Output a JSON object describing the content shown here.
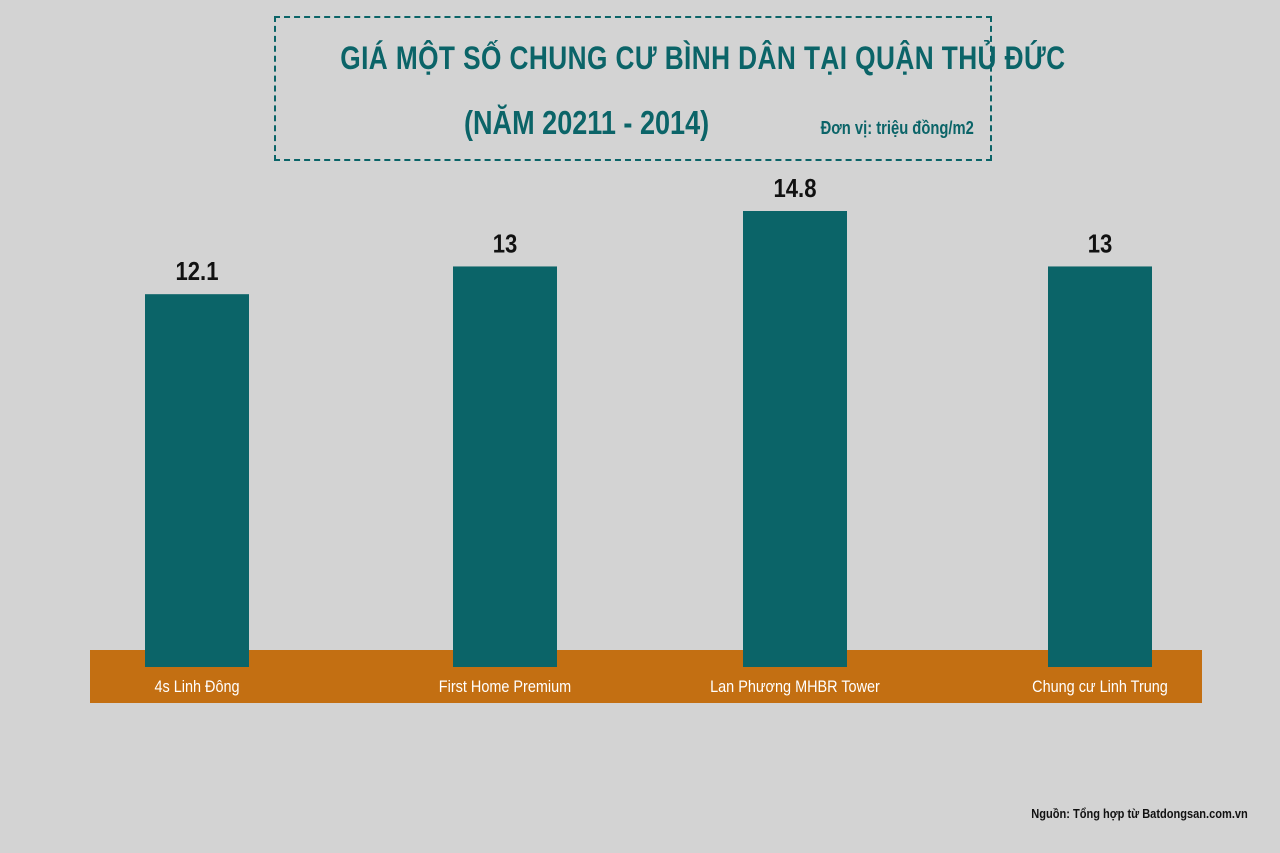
{
  "header": {
    "title": "GIÁ MỘT SỐ CHUNG CƯ BÌNH DÂN TẠI QUẬN THỦ ĐỨC",
    "subtitle": "(NĂM 20211 - 2014)",
    "unit": "Đơn vị: triệu đồng/m2"
  },
  "footer": {
    "source": "Nguồn: Tổng hợp từ Batdongsan.com.vn"
  },
  "colors": {
    "background": "#d3d3d3",
    "bar": "#0b6468",
    "baseline_band": "#c36f12",
    "category_text": "#ffffff",
    "value_text": "#111111",
    "title": "#0b6468"
  },
  "chart_data": {
    "type": "bar",
    "title": "GIÁ MỘT SỐ CHUNG CƯ BÌNH DÂN TẠI QUẬN THỦ ĐỨC",
    "subtitle": "(NĂM 20211 - 2014)",
    "unit": "Đơn vị: triệu đồng/m2",
    "categories": [
      "4s Linh Đông",
      "First Home Premium",
      "Lan Phương MHBR Tower",
      "Chung cư Linh Trung"
    ],
    "values": [
      12.1,
      13,
      14.8,
      13
    ],
    "value_labels": [
      "12.1",
      "13",
      "14.8",
      "13"
    ],
    "ylim": [
      0,
      14.8
    ],
    "grid": false,
    "legend": "none"
  }
}
